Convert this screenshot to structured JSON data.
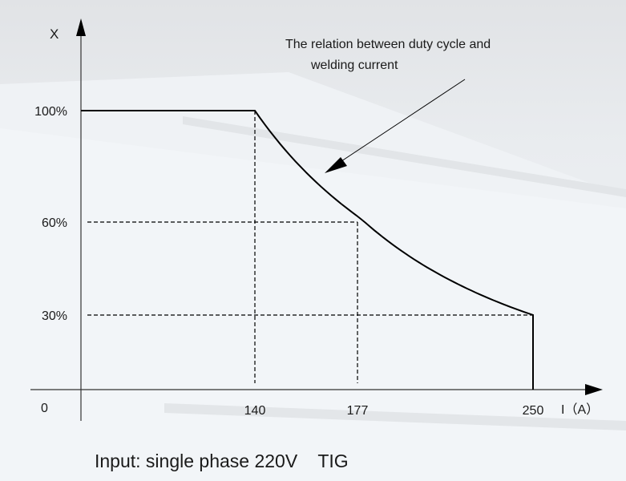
{
  "chart_data": {
    "type": "line",
    "annotation": "The relation between duty cycle and welding current",
    "annotation_lines": [
      "The relation between duty cycle and",
      "welding current"
    ],
    "xlabel": "I（A）",
    "ylabel": "X",
    "origin_label": "0",
    "x_ticks": [
      {
        "value": 140,
        "label": "140"
      },
      {
        "value": 177,
        "label": "177"
      },
      {
        "value": 250,
        "label": "250"
      }
    ],
    "y_ticks": [
      {
        "value": 100,
        "label": "100%"
      },
      {
        "value": 60,
        "label": "60%"
      },
      {
        "value": 30,
        "label": "30%"
      }
    ],
    "series": [
      {
        "points": [
          [
            0,
            100
          ],
          [
            140,
            100
          ],
          [
            177,
            60
          ],
          [
            250,
            30
          ],
          [
            250,
            0
          ]
        ]
      }
    ],
    "reference_lines": [
      {
        "from": [
          140,
          100
        ],
        "to": [
          140,
          0
        ]
      },
      {
        "from": [
          0,
          60
        ],
        "to": [
          177,
          60
        ]
      },
      {
        "from": [
          177,
          60
        ],
        "to": [
          177,
          0
        ]
      },
      {
        "from": [
          0,
          30
        ],
        "to": [
          250,
          30
        ]
      }
    ],
    "grid": false,
    "line_color": "#000000"
  },
  "caption": "Input: single phase 220V    TIG"
}
